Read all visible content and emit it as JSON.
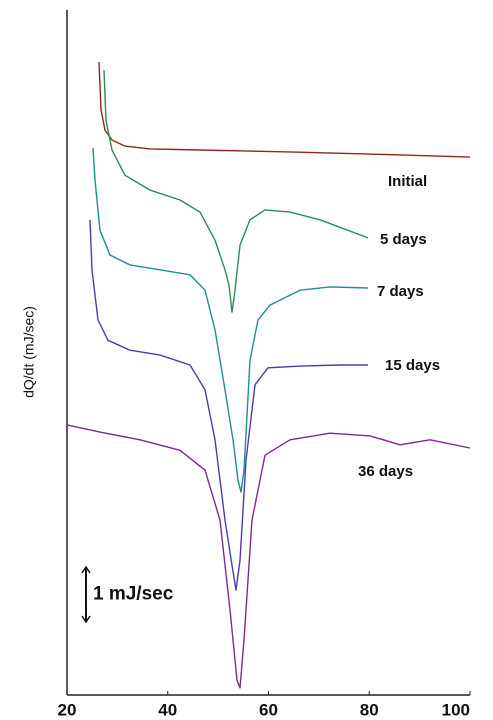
{
  "chart_data": {
    "type": "line",
    "y_label": "dQ/dt (mJ/sec)",
    "xlim": [
      20,
      100
    ],
    "xticks": [
      20,
      40,
      60,
      80,
      100
    ],
    "ylim": [
      0,
      12.4
    ],
    "scale_bar": {
      "label": "1 mJ/sec",
      "value": 1
    },
    "series": [
      {
        "name": "Initial",
        "color": "#8b2a1a",
        "x": [
          26.35,
          26.75,
          27.54,
          28.93,
          31.51,
          36.48,
          46.4,
          66.25,
          86.1,
          100
        ],
        "values": [
          11.51,
          10.64,
          10.27,
          10.09,
          9.98,
          9.93,
          9.91,
          9.87,
          9.82,
          9.78
        ]
      },
      {
        "name": "5 days",
        "color": "#2e8b57",
        "x": [
          27.34,
          27.74,
          28.93,
          31.51,
          36.48,
          42.43,
          46.4,
          49.38,
          51.36,
          52.16,
          52.75,
          53.35,
          54.34,
          56.33,
          59.31,
          64.27,
          70.22,
          79.75
        ],
        "values": [
          11.36,
          10.45,
          9.91,
          9.45,
          9.18,
          9,
          8.78,
          8.27,
          7.73,
          7.45,
          6.96,
          7.36,
          8.18,
          8.64,
          8.82,
          8.78,
          8.64,
          8.31
        ]
      },
      {
        "name": "7 days",
        "color": "#1f8f8f",
        "x": [
          25.16,
          25.56,
          26.55,
          28.54,
          32.51,
          38.46,
          44.42,
          47.39,
          49.38,
          51.36,
          52.95,
          53.95,
          54.54,
          55.14,
          56.33,
          57.92,
          60.3,
          66.25,
          72.21,
          79.75
        ],
        "values": [
          9.95,
          9.36,
          8.45,
          8,
          7.82,
          7.73,
          7.64,
          7.36,
          6.64,
          5.55,
          4.64,
          3.91,
          3.69,
          4.09,
          6.09,
          6.82,
          7.09,
          7.36,
          7.42,
          7.4
        ]
      },
      {
        "name": "15 days",
        "color": "#4b3cb0",
        "x": [
          24.57,
          24.96,
          26.15,
          28.14,
          32.51,
          38.46,
          44.42,
          47.39,
          49.38,
          51.36,
          52.75,
          53.55,
          54.34,
          55.53,
          57.32,
          59.9,
          66.25,
          74.19,
          79.75
        ],
        "values": [
          8.64,
          7.73,
          6.82,
          6.45,
          6.27,
          6.18,
          6,
          5.55,
          4.64,
          3.18,
          2.36,
          1.91,
          2.45,
          4.27,
          5.64,
          5.95,
          5.98,
          6,
          6
        ]
      },
      {
        "name": "36 days",
        "color": "#7a2c8a",
        "x": [
          20,
          26.55,
          34.49,
          42.43,
          47.39,
          50.37,
          52.36,
          53.75,
          54.34,
          55.14,
          56.72,
          59.31,
          64.27,
          72.21,
          80.15,
          86.1,
          92.06,
          100
        ],
        "values": [
          4.91,
          4.78,
          4.64,
          4.45,
          4.09,
          3.18,
          1.55,
          0.27,
          0.13,
          1,
          3.18,
          4.36,
          4.64,
          4.76,
          4.71,
          4.55,
          4.64,
          4.49
        ]
      }
    ]
  }
}
